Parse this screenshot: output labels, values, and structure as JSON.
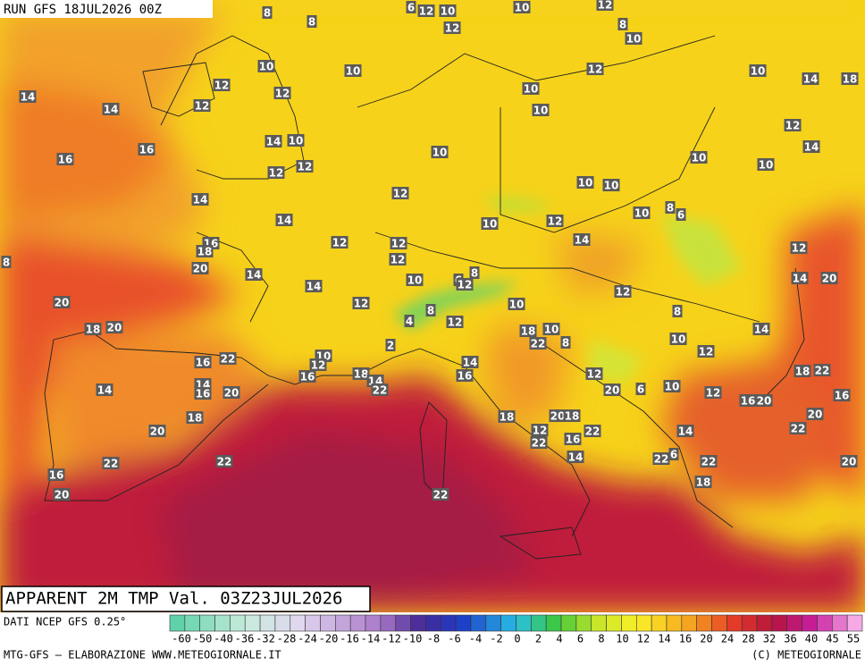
{
  "header": {
    "run": "RUN GFS 18JUL2026 00Z"
  },
  "footer": {
    "title": "APPARENT 2M TMP Val. 03Z23JUL2026",
    "source": "DATI NCEP GFS 0.25°",
    "credit": "MTG-GFS — ELABORAZIONE WWW.METEOGIORNALE.IT",
    "copyright": "(C) METEOGIORNALE"
  },
  "colorbar": {
    "labels": [
      -60,
      -50,
      -40,
      -36,
      -32,
      -28,
      -24,
      -20,
      -16,
      -14,
      -12,
      -10,
      -8,
      -6,
      -4,
      -2,
      0,
      2,
      4,
      6,
      8,
      10,
      12,
      14,
      16,
      20,
      24,
      28,
      32,
      36,
      40,
      45,
      55
    ]
  },
  "map_labels": [
    8,
    8,
    6,
    12,
    10,
    10,
    12,
    12,
    8,
    10,
    10,
    10,
    12,
    10,
    14,
    18,
    14,
    12,
    12,
    12,
    14,
    10,
    10,
    12,
    14,
    10,
    16,
    16,
    10,
    14,
    10,
    10,
    12,
    12,
    12,
    10,
    10,
    14,
    8,
    6,
    10,
    14,
    10,
    12,
    16,
    18,
    12,
    12,
    14,
    12,
    8,
    12,
    20,
    14,
    10,
    6,
    8,
    12,
    14,
    14,
    20,
    12,
    20,
    12,
    10,
    8,
    8,
    4,
    12,
    18,
    20,
    18,
    10,
    14,
    22,
    8,
    10,
    2,
    10,
    12,
    16,
    22,
    12,
    14,
    18,
    14,
    22,
    16,
    16,
    12,
    18,
    22,
    14,
    14,
    16,
    20,
    20,
    6,
    10,
    12,
    16,
    20,
    16,
    18,
    20,
    18,
    18,
    20,
    12,
    22,
    20,
    22,
    22,
    16,
    14,
    22,
    22,
    14,
    22,
    6,
    22,
    20,
    16,
    18,
    20,
    22
  ]
}
